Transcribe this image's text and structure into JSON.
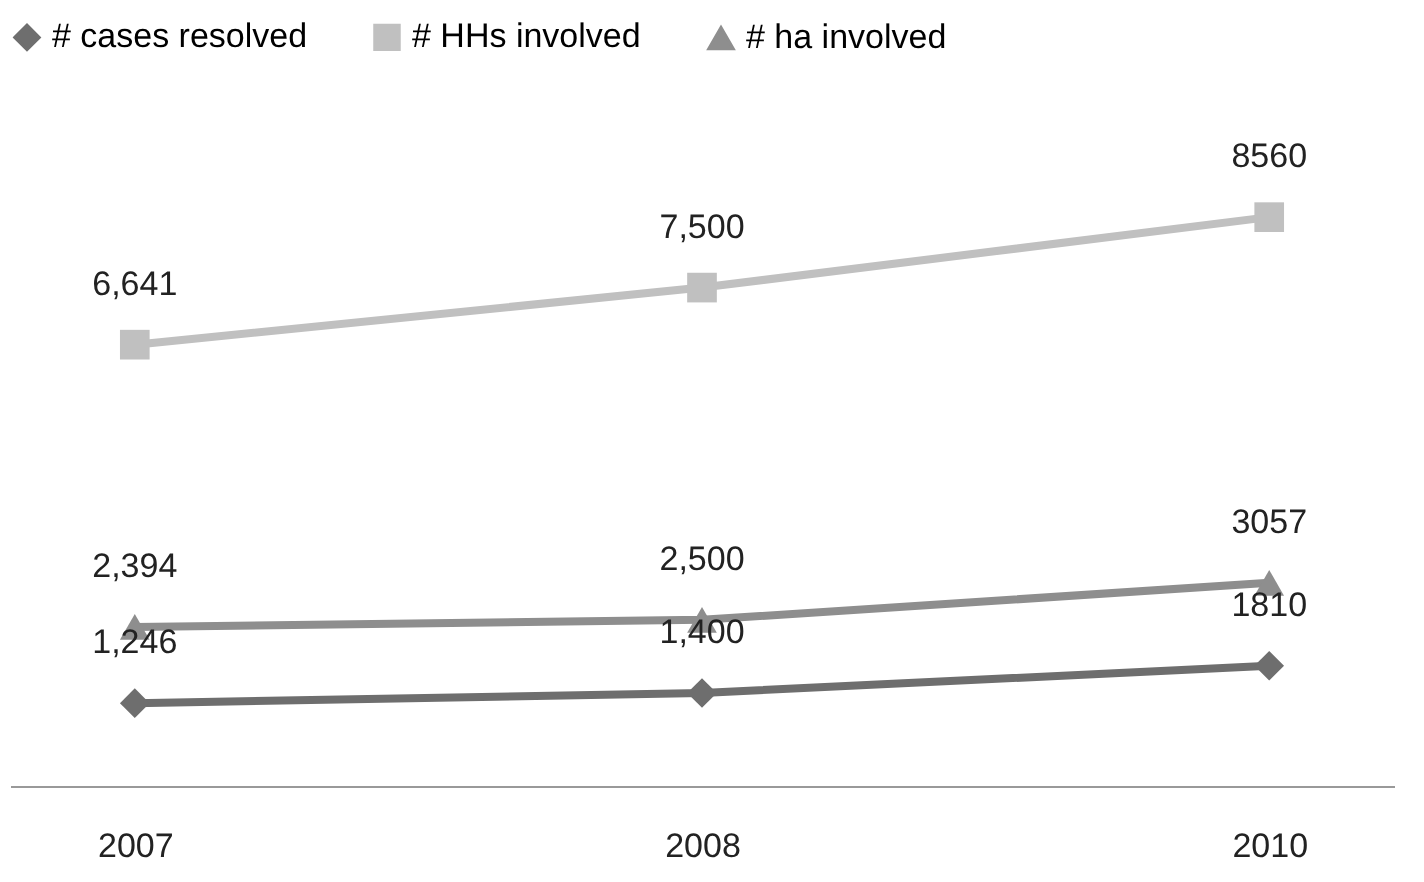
{
  "chart_data": {
    "type": "line",
    "categories": [
      "2007",
      "2008",
      "2010"
    ],
    "series": [
      {
        "name": "# cases resolved",
        "color": "#6e6e6e",
        "marker": "diamond",
        "values": [
          1246,
          1400,
          1810
        ],
        "value_labels": [
          "1,246",
          "1,400",
          "1810"
        ]
      },
      {
        "name": "# HHs involved",
        "color": "#c0c0c0",
        "marker": "square",
        "values": [
          6641,
          7500,
          8560
        ],
        "value_labels": [
          "6,641",
          "7,500",
          "8560"
        ]
      },
      {
        "name": "# ha involved",
        "color": "#8e8e8e",
        "marker": "triangle",
        "values": [
          2394,
          2500,
          3057
        ],
        "value_labels": [
          "2,394",
          "2,500",
          "3057"
        ]
      }
    ],
    "legend": "top",
    "line_style": "solid"
  }
}
